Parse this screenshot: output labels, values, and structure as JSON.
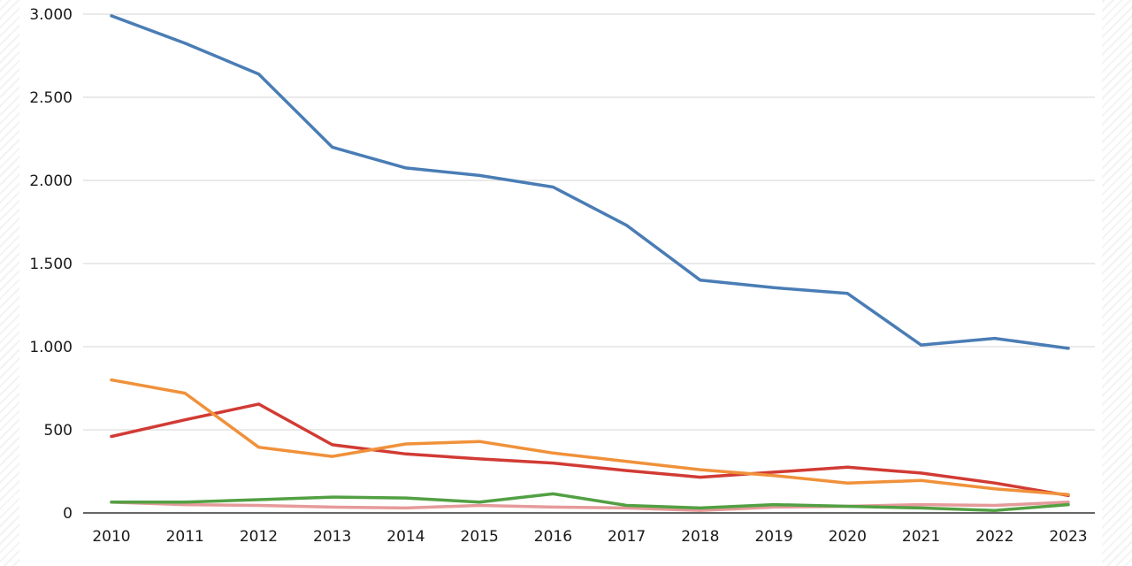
{
  "chart_data": {
    "type": "line",
    "title": "",
    "xlabel": "",
    "ylabel": "",
    "x": [
      "2010",
      "2011",
      "2012",
      "2013",
      "2014",
      "2015",
      "2016",
      "2017",
      "2018",
      "2019",
      "2020",
      "2021",
      "2022",
      "2023"
    ],
    "ylim": [
      0,
      3000
    ],
    "yticks": [
      0,
      500,
      1000,
      1500,
      2000,
      2500,
      3000
    ],
    "ytick_labels": [
      "0",
      "500",
      "1.000",
      "1.500",
      "2.000",
      "2.500",
      "3.000"
    ],
    "grid": true,
    "legend": "none",
    "series": [
      {
        "color": "#4a7db5",
        "values": [
          2990,
          2825,
          2640,
          2200,
          2075,
          2030,
          1960,
          1730,
          1400,
          1355,
          1320,
          1010,
          1050,
          990
        ]
      },
      {
        "color": "#f0913a",
        "values": [
          800,
          720,
          395,
          340,
          415,
          430,
          360,
          310,
          260,
          225,
          180,
          195,
          145,
          110
        ]
      },
      {
        "color": "#d13b34",
        "values": [
          460,
          560,
          655,
          410,
          355,
          325,
          300,
          255,
          215,
          245,
          275,
          240,
          180,
          105
        ]
      },
      {
        "color": "#52a043",
        "values": [
          65,
          65,
          80,
          95,
          90,
          65,
          115,
          45,
          30,
          50,
          40,
          30,
          15,
          50
        ]
      },
      {
        "color": "#e69a9a",
        "values": [
          65,
          50,
          45,
          35,
          30,
          45,
          35,
          30,
          15,
          35,
          40,
          50,
          45,
          65
        ]
      }
    ]
  }
}
